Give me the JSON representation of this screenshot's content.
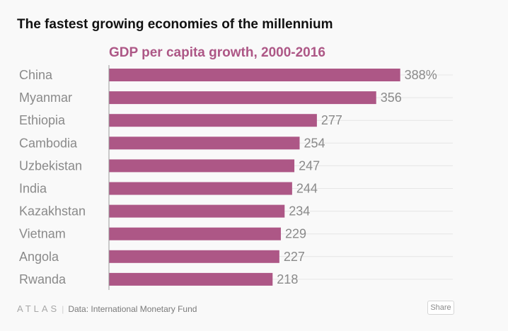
{
  "chart_data": {
    "type": "bar",
    "orientation": "horizontal",
    "title": "The fastest growing economies of the millennium",
    "subtitle": "GDP per capita growth, 2000-2016",
    "categories": [
      "China",
      "Myanmar",
      "Ethiopia",
      "Cambodia",
      "Uzbekistan",
      "India",
      "Kazakhstan",
      "Vietnam",
      "Angola",
      "Rwanda"
    ],
    "values": [
      388,
      356,
      277,
      254,
      247,
      244,
      234,
      229,
      227,
      218
    ],
    "value_labels": [
      "388%",
      "356",
      "277",
      "254",
      "247",
      "244",
      "234",
      "229",
      "227",
      "218"
    ],
    "xlim": [
      0,
      480
    ],
    "grid": true,
    "bar_color": "#ad5786",
    "subtitle_color": "#ad5786"
  },
  "footer": {
    "logo": "ATLAS",
    "separator": "|",
    "source": "Data:  International Monetary Fund",
    "share_label": "Share"
  }
}
